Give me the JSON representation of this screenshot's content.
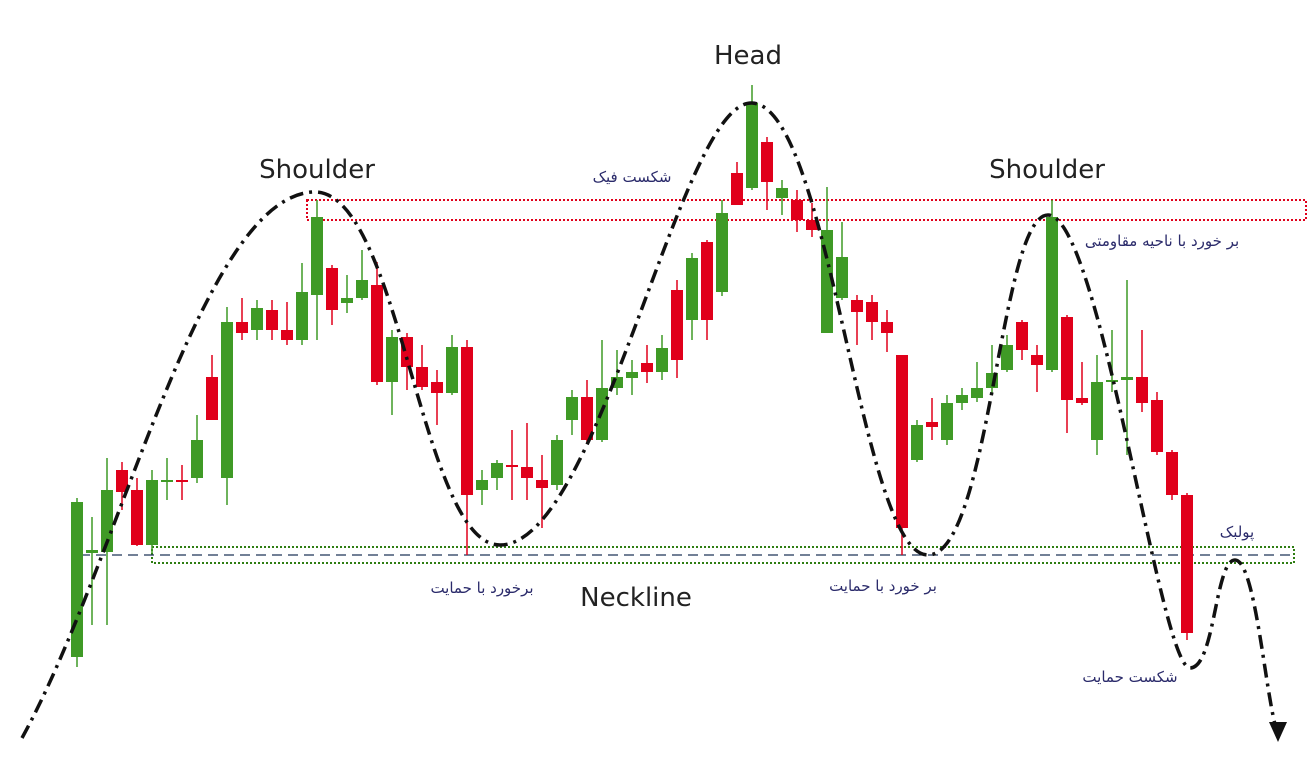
{
  "chart_data": {
    "type": "candlestick",
    "up_color": "#3f9a26",
    "down_color": "#e0001b",
    "ylim": [
      0,
      778
    ],
    "candles": {
      "open": [
        121,
        225,
        226,
        308,
        288,
        233,
        296,
        298,
        300,
        401,
        300,
        456,
        448,
        468,
        448,
        438,
        483,
        510,
        475,
        480,
        493,
        396,
        441,
        411,
        396,
        385,
        431,
        288,
        300,
        313,
        311,
        298,
        293,
        358,
        381,
        338,
        390,
        400,
        415,
        406,
        488,
        458,
        536,
        486,
        605,
        590,
        636,
        580,
        578,
        558,
        445,
        480,
        478,
        476,
        456,
        423,
        318,
        356,
        338,
        375,
        380,
        390,
        408,
        456,
        423,
        408,
        461,
        380,
        338,
        396,
        398,
        401,
        378,
        326,
        283
      ],
      "high": [
        280,
        261,
        320,
        316,
        300,
        308,
        320,
        313,
        363,
        423,
        471,
        480,
        478,
        478,
        476,
        515,
        578,
        513,
        503,
        528,
        516,
        448,
        445,
        433,
        408,
        443,
        438,
        308,
        318,
        348,
        355,
        323,
        343,
        388,
        398,
        438,
        428,
        418,
        433,
        443,
        498,
        525,
        538,
        578,
        616,
        693,
        641,
        598,
        588,
        575,
        591,
        556,
        483,
        483,
        468,
        423,
        358,
        380,
        383,
        390,
        416,
        433,
        443,
        458,
        433,
        578,
        463,
        416,
        423,
        448,
        498,
        448,
        386,
        328,
        285
      ],
      "low": [
        111,
        153,
        153,
        268,
        232,
        225,
        278,
        278,
        295,
        358,
        273,
        438,
        438,
        438,
        433,
        433,
        438,
        453,
        465,
        478,
        393,
        363,
        388,
        388,
        353,
        383,
        223,
        273,
        288,
        278,
        278,
        250,
        288,
        343,
        336,
        336,
        383,
        383,
        395,
        398,
        400,
        438,
        438,
        482,
        573,
        588,
        568,
        563,
        546,
        541,
        445,
        478,
        433,
        438,
        426,
        223,
        316,
        338,
        333,
        368,
        376,
        385,
        406,
        418,
        386,
        406,
        345,
        373,
        323,
        386,
        323,
        366,
        323,
        278,
        138
      ],
      "close": [
        276,
        228,
        288,
        286,
        233,
        298,
        298,
        296,
        338,
        358,
        456,
        445,
        470,
        448,
        438,
        486,
        561,
        468,
        480,
        498,
        396,
        441,
        411,
        391,
        385,
        431,
        283,
        298,
        315,
        311,
        300,
        290,
        338,
        381,
        338,
        390,
        401,
        406,
        406,
        430,
        418,
        520,
        458,
        565,
        573,
        675,
        596,
        590,
        558,
        548,
        548,
        521,
        466,
        456,
        445,
        250,
        353,
        351,
        375,
        383,
        390,
        405,
        433,
        428,
        413,
        561,
        378,
        375,
        396,
        398,
        401,
        375,
        326,
        283,
        145
      ]
    },
    "resistance_zone": [
      558,
      578
    ],
    "support_zone": [
      215,
      231
    ],
    "neckline": 223,
    "annotations": {
      "head": "Head",
      "left_shoulder": "Shoulder",
      "right_shoulder": "Shoulder",
      "neckline": "Neckline",
      "fake_break": "شکست فیک",
      "resistance_touch": "بر خورد با ناحیه مقاومتی",
      "support_touch_1": "برخورد با حمایت",
      "support_touch_2": "بر خورد با حمایت",
      "pullback": "پولبک",
      "support_break": "شکست حمایت"
    }
  }
}
